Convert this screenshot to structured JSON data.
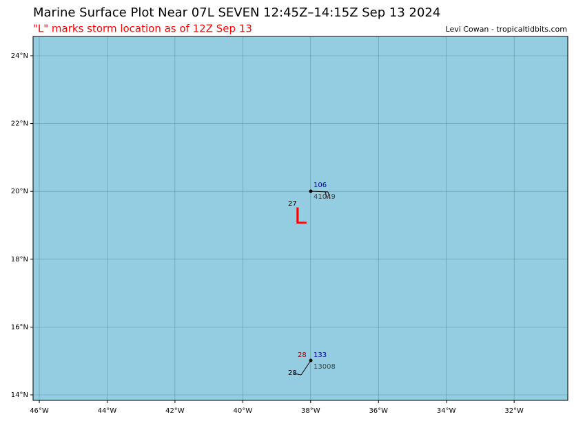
{
  "header": {
    "title": "Marine Surface Plot Near 07L SEVEN 12:45Z–14:15Z Sep 13 2024",
    "subtitle": "\"L\" marks storm location as of 12Z Sep 13",
    "credit": "Levi Cowan - tropicaltidbits.com"
  },
  "map": {
    "lat_labels": [
      "24°N",
      "22°N",
      "20°N",
      "18°N",
      "16°N",
      "14°N"
    ],
    "lon_labels": [
      "46°W",
      "44°W",
      "42°W",
      "40°W",
      "38°W",
      "36°W",
      "34°W",
      "32°W"
    ],
    "storm_marker": "L",
    "stations": [
      {
        "id": "41049",
        "pressure": "106",
        "temperature": "27"
      },
      {
        "id": "13008",
        "pressure": "133",
        "dewpoint": "28",
        "temperature": "28"
      }
    ]
  }
}
